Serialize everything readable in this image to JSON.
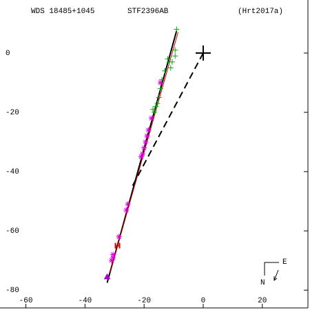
{
  "header": {
    "wds": "WDS 18485+1045",
    "name": "STF2396AB",
    "ref": "(Hrt2017a)"
  },
  "compass": {
    "east": "E",
    "north": "N"
  },
  "chart_data": {
    "type": "scatter",
    "xlim": [
      -68.76,
      35.44
    ],
    "ylim": [
      -86,
      17.9
    ],
    "xticks": [
      -60,
      -40,
      -20,
      0,
      20
    ],
    "yticks": [
      0,
      -20,
      -40,
      -60,
      -80
    ],
    "series": [
      {
        "marker": "line",
        "color": "#000000",
        "x": [
          -32.5,
          -9
        ],
        "values": [
          -77.5,
          7.5
        ]
      },
      {
        "marker": "line",
        "color": "#cc0000",
        "x": [
          -31.5,
          -8.5
        ],
        "values": [
          -74,
          7
        ]
      },
      {
        "marker": "dashed",
        "color": "#000000",
        "x": [
          0,
          -24
        ],
        "values": [
          0,
          -45
        ]
      },
      {
        "marker": "bigplus",
        "color": "#000000",
        "x": [
          0
        ],
        "values": [
          0
        ]
      },
      {
        "marker": "plus",
        "color": "#00aa00",
        "x": [
          -9.5,
          -9.5,
          -10.5,
          -11,
          -11.5,
          -12,
          -13,
          -14,
          -14.5,
          -15,
          -15.5,
          -16,
          -16.5,
          -17,
          -9
        ],
        "values": [
          -1,
          1,
          -3,
          -5,
          -3,
          -2,
          -6,
          -9,
          -12,
          -15,
          -17,
          -18,
          -20,
          -19,
          8
        ]
      },
      {
        "marker": "star",
        "color": "#dd00dd",
        "x": [
          -14.5,
          -17.5,
          -18.5,
          -19,
          -19.5,
          -20,
          -20.5,
          -21,
          -25.5,
          -26,
          -28.5,
          -30.5,
          -31,
          -30.5
        ],
        "values": [
          -10,
          -22,
          -26,
          -28,
          -30,
          -32,
          -34,
          -35,
          -51,
          -53,
          -62,
          -69,
          -70,
          -68
        ]
      },
      {
        "marker": "H",
        "color": "#dd0000",
        "x": [
          -29
        ],
        "values": [
          -65
        ]
      },
      {
        "marker": "triangle",
        "color": "#aa00cc",
        "x": [
          -32.5
        ],
        "values": [
          -75.5
        ]
      }
    ]
  }
}
